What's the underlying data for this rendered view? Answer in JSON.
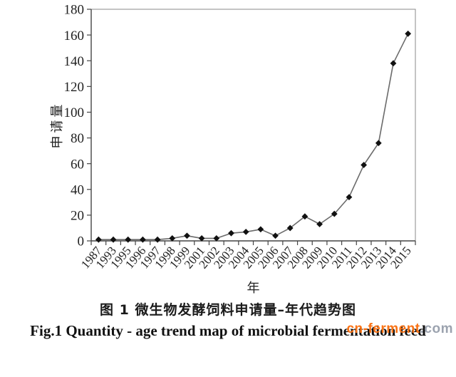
{
  "figure": {
    "caption_cn": "图 1  微生物发酵饲料申请量–年代趋势图",
    "caption_en": "Fig.1 Quantity - age trend map of microbial fermentation feed",
    "watermark": {
      "brand": "cn-ferment",
      "suffix": ".com",
      "brand_color": "#f97316",
      "suffix_color": "#9ca3af"
    }
  },
  "chart_data": {
    "type": "line",
    "title": "",
    "xlabel": "年",
    "ylabel": "申请量",
    "categories": [
      "1987",
      "1993",
      "1995",
      "1996",
      "1997",
      "1998",
      "1999",
      "2001",
      "2002",
      "2003",
      "2004",
      "2005",
      "2006",
      "2007",
      "2008",
      "2009",
      "2010",
      "2011",
      "2012",
      "2013",
      "2014",
      "2015"
    ],
    "values": [
      1,
      1,
      1,
      1,
      1,
      2,
      4,
      2,
      2,
      6,
      7,
      9,
      4,
      10,
      19,
      13,
      21,
      34,
      59,
      76,
      138,
      161
    ],
    "ylim": [
      0,
      180
    ],
    "yticks": [
      0,
      20,
      40,
      60,
      80,
      100,
      120,
      140,
      160,
      180
    ],
    "grid": false,
    "legend": null,
    "marker": "diamond",
    "line_color": "#6b6b6b",
    "marker_color": "#111111",
    "axis_color": "#444444",
    "box_color": "#8a8a8a",
    "tick_label_size": 19,
    "xtick_rotation": -50
  }
}
